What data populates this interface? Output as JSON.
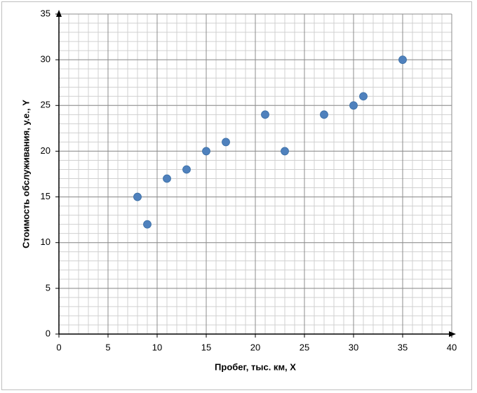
{
  "chart_data": {
    "type": "scatter",
    "x_label": "Пробег, тыс. км, X",
    "y_label": "Стоимость обслуживания, у.е., Y",
    "series": [
      {
        "color": "#4f81bd",
        "x": [
          8,
          9,
          11,
          13,
          15,
          17,
          21,
          23,
          27,
          30,
          31,
          35
        ],
        "values": [
          15,
          12,
          17,
          18,
          20,
          21,
          24,
          20,
          24,
          25,
          26,
          30
        ]
      }
    ],
    "xlim": [
      0,
      40
    ],
    "xticks": [
      0,
      5,
      10,
      15,
      20,
      25,
      30,
      35,
      40
    ],
    "ylim": [
      0,
      35
    ],
    "yticks": [
      0,
      5,
      10,
      15,
      20,
      25,
      30,
      35
    ],
    "grid": true,
    "minor_grid": true
  }
}
